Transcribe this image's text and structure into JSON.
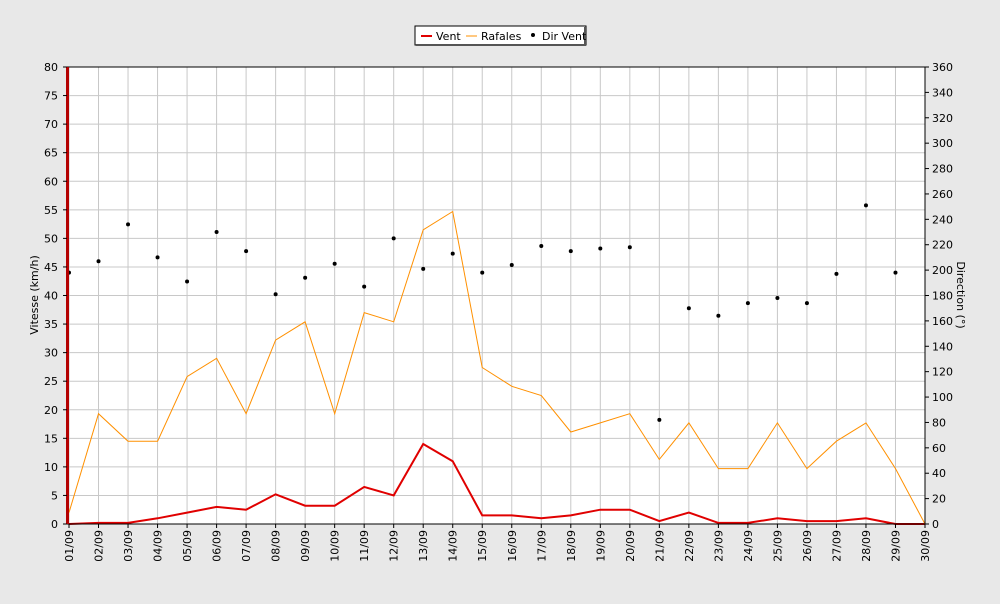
{
  "chart_data": {
    "type": "line",
    "categories": [
      "01/09",
      "02/09",
      "03/09",
      "04/09",
      "05/09",
      "06/09",
      "07/09",
      "08/09",
      "09/09",
      "10/09",
      "11/09",
      "12/09",
      "13/09",
      "14/09",
      "15/09",
      "16/09",
      "17/09",
      "18/09",
      "19/09",
      "20/09",
      "21/09",
      "22/09",
      "23/09",
      "24/09",
      "25/09",
      "26/09",
      "27/09",
      "28/09",
      "29/09",
      "30/09"
    ],
    "ylabel": "Vitesse (km/h)",
    "ylabel_right": "Direction (°)",
    "ylim": [
      0,
      80
    ],
    "yticks": [
      0,
      5,
      10,
      15,
      20,
      25,
      30,
      35,
      40,
      45,
      50,
      55,
      60,
      65,
      70,
      75,
      80
    ],
    "y2lim": [
      0,
      360
    ],
    "y2ticks": [
      0,
      20,
      40,
      60,
      80,
      100,
      120,
      140,
      160,
      180,
      200,
      220,
      240,
      260,
      280,
      300,
      320,
      340,
      360
    ],
    "grid": true,
    "legend_position": "top-center",
    "series": [
      {
        "name": "Vent",
        "axis": "left",
        "kind": "line",
        "color": "#e00000",
        "values": [
          0,
          0.2,
          0.2,
          1,
          2,
          3,
          2.5,
          5.2,
          3.2,
          3.2,
          6.5,
          5,
          14,
          11,
          1.5,
          1.5,
          1,
          1.5,
          2.5,
          2.5,
          0.5,
          2,
          0.2,
          0.2,
          1,
          0.5,
          0.5,
          1,
          0,
          0
        ]
      },
      {
        "name": "Rafales",
        "axis": "left",
        "kind": "line",
        "color": "#ff9000",
        "values": [
          2,
          19.3,
          14.5,
          14.5,
          25.8,
          29,
          19.3,
          32.2,
          35.4,
          19.3,
          37,
          35.4,
          51.5,
          54.7,
          27.4,
          24.1,
          22.5,
          16.1,
          17.7,
          19.3,
          11.3,
          17.7,
          9.7,
          9.7,
          17.7,
          9.7,
          14.5,
          17.7,
          9.7,
          0
        ]
      },
      {
        "name": "Dir Vent",
        "axis": "right",
        "kind": "scatter",
        "color": "#000000",
        "values": [
          198,
          207,
          236,
          210,
          191,
          230,
          215,
          181,
          194,
          205,
          187,
          225,
          201,
          213,
          198,
          204,
          219,
          215,
          217,
          218,
          82,
          170,
          164,
          174,
          178,
          174,
          197,
          251,
          198,
          null
        ]
      }
    ]
  }
}
